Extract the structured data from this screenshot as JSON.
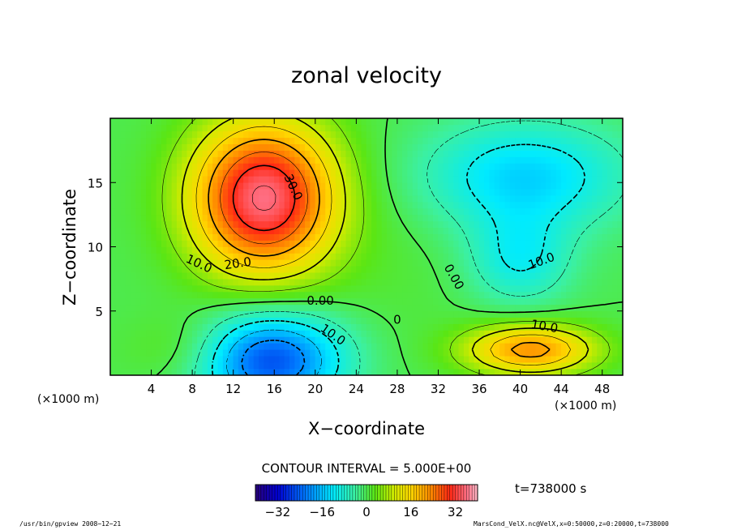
{
  "chart_data": {
    "type": "heatmap",
    "title": "zonal velocity",
    "xlabel": "X−coordinate",
    "ylabel": "Z−coordinate",
    "x_unit": "(×1000 m)",
    "y_unit": "(×1000 m)",
    "xlim": [
      0,
      50
    ],
    "ylim": [
      0,
      20
    ],
    "x_ticks": [
      4,
      8,
      12,
      16,
      20,
      24,
      28,
      32,
      36,
      40,
      44,
      48
    ],
    "y_ticks": [
      5,
      10,
      15
    ],
    "contour_interval_label": "CONTOUR INTERVAL = 5.000E+00",
    "time_label": "t=738000 s",
    "colorbar": {
      "range": [
        -40,
        40
      ],
      "ticks": [
        "−32",
        "−16",
        "0",
        "16",
        "32"
      ]
    },
    "contour_labels": [
      {
        "text": "30.0",
        "x": 17.5,
        "z": 14.5,
        "rotate": 65
      },
      {
        "text": "20.0",
        "x": 12.5,
        "z": 8.4,
        "rotate": -8
      },
      {
        "text": "10.0",
        "x": 8.5,
        "z": 8.4,
        "rotate": 25
      },
      {
        "text": "0.00",
        "x": 20.5,
        "z": 5.5,
        "rotate": 0
      },
      {
        "text": "10.0",
        "x": 21.5,
        "z": 2.9,
        "rotate": 35
      },
      {
        "text": "0.00",
        "x": 33.2,
        "z": 7.5,
        "rotate": 60
      },
      {
        "text": "10.0",
        "x": 42.2,
        "z": 8.6,
        "rotate": -20
      },
      {
        "text": "10.0",
        "x": 42.3,
        "z": 3.5,
        "rotate": 10
      },
      {
        "text": "0",
        "x": 28.0,
        "z": 4.0,
        "rotate": 0
      }
    ],
    "features": [
      {
        "kind": "jet",
        "x": 15.0,
        "z": 13.8,
        "sx": 5.0,
        "sz": 4.2,
        "amp": 36,
        "note": "upper westerly jet"
      },
      {
        "kind": "jet",
        "x": 15.5,
        "z": 1.2,
        "sx": 5.0,
        "sz": 2.6,
        "amp": -26,
        "note": "low easterly"
      },
      {
        "kind": "jet",
        "x": 40.5,
        "z": 15.5,
        "sx": 7.0,
        "sz": 3.0,
        "amp": -14,
        "note": "upper easterly"
      },
      {
        "kind": "jet",
        "x": 40.0,
        "z": 9.0,
        "sx": 3.5,
        "sz": 2.5,
        "amp": -10,
        "note": "upper easterly lobe"
      },
      {
        "kind": "jet",
        "x": 41.0,
        "z": 2.0,
        "sx": 4.5,
        "sz": 1.4,
        "amp": 22,
        "note": "low westerly"
      },
      {
        "kind": "jet",
        "x": 28.0,
        "z": 8.0,
        "sx": 5.0,
        "sz": 5.0,
        "amp": 1,
        "note": "neutral region"
      }
    ]
  },
  "footer": {
    "left": "/usr/bin/gpview   2008−12−21",
    "right": "MarsCond_VelX.nc@VelX,x=0:50000,z=0:20000,t=738000"
  }
}
